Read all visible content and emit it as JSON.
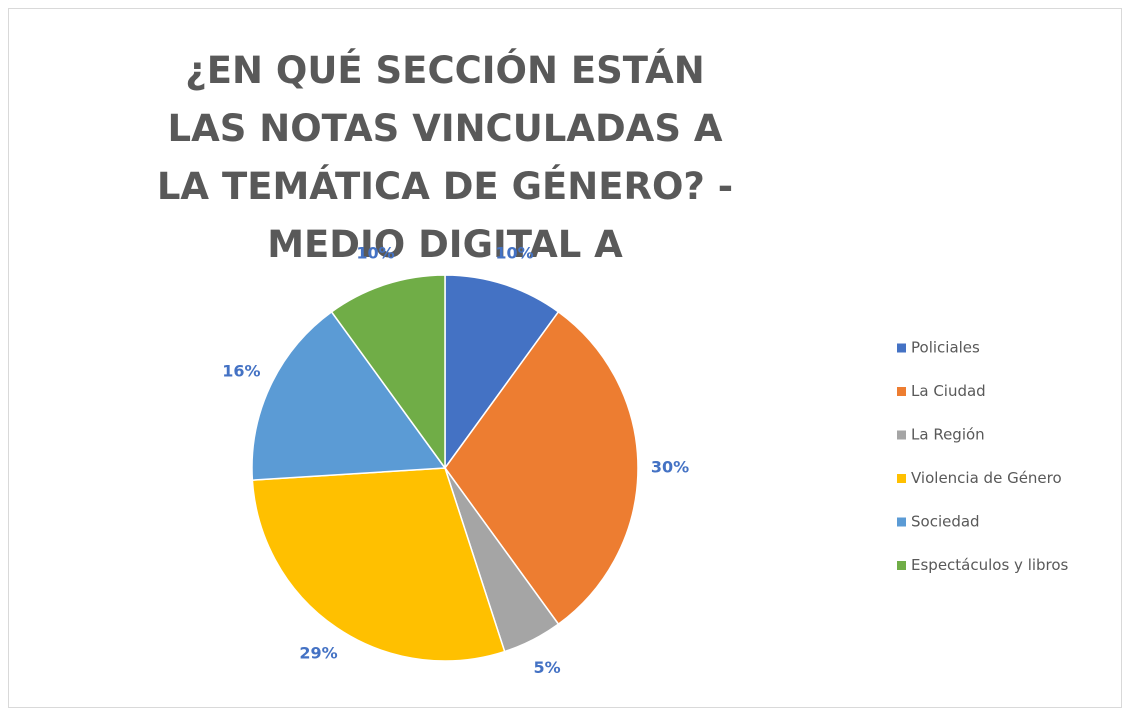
{
  "chart_data": {
    "type": "pie",
    "title": "¿EN QUÉ SECCIÓN ESTÁN LAS NOTAS VINCULADAS A LA TEMÁTICA DE GÉNERO? - MEDIO DIGITAL A",
    "categories": [
      "Policiales",
      "La Ciudad",
      "La Región",
      "Violencia de Género",
      "Sociedad",
      "Espectáculos y libros"
    ],
    "values": [
      10,
      30,
      5,
      29,
      16,
      10
    ],
    "value_labels": [
      "10%",
      "30%",
      "5%",
      "29%",
      "16%",
      "10%"
    ],
    "colors": [
      "#4472c4",
      "#ed7d31",
      "#a5a5a5",
      "#ffc000",
      "#5b9bd5",
      "#70ad47"
    ],
    "legend": "right"
  }
}
